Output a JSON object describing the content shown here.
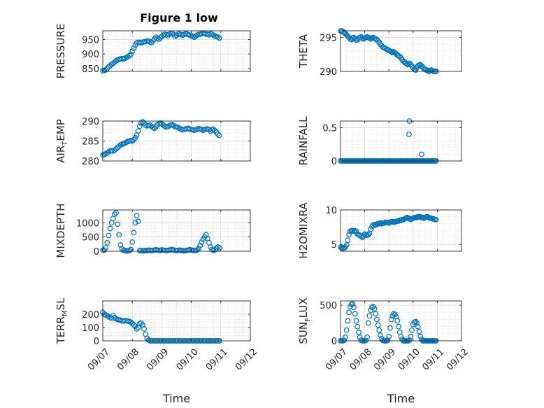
{
  "figure": {
    "title": "Figure 1 low",
    "marker_color": "#0072BD"
  },
  "chart_data": [
    {
      "type": "scatter",
      "ylabel": "PRESSURE",
      "ylim": [
        840,
        980
      ],
      "yticks": [
        850,
        900,
        950
      ],
      "xlim": [
        "09/07",
        "09/12"
      ],
      "xticks": [],
      "xlabel": "",
      "grid": true,
      "x": [
        0.0,
        0.05,
        0.1,
        0.15,
        0.2,
        0.25,
        0.3,
        0.35,
        0.4,
        0.45,
        0.5,
        0.55,
        0.6,
        0.65,
        0.7,
        0.75,
        0.8,
        0.85,
        0.9,
        0.95,
        1.0,
        1.05,
        1.1,
        1.15,
        1.2,
        1.25,
        1.3,
        1.35,
        1.4,
        1.45,
        1.5,
        1.55,
        1.6,
        1.65,
        1.7,
        1.75,
        1.8,
        1.85,
        1.9,
        1.95,
        2.0,
        2.05,
        2.1,
        2.15,
        2.2,
        2.25,
        2.3,
        2.35,
        2.4,
        2.45,
        2.5,
        2.55,
        2.6,
        2.65,
        2.7,
        2.75,
        2.8,
        2.85,
        2.9,
        2.95,
        3.0,
        3.05,
        3.1,
        3.15,
        3.2,
        3.25,
        3.3,
        3.35,
        3.4,
        3.45,
        3.5,
        3.55,
        3.6,
        3.65,
        3.7,
        3.75,
        3.8,
        3.85,
        3.9,
        3.95
      ],
      "values": [
        842,
        843,
        845,
        850,
        856,
        860,
        864,
        868,
        872,
        876,
        879,
        882,
        883,
        884,
        883,
        885,
        888,
        891,
        894,
        899,
        910,
        920,
        930,
        938,
        940,
        940,
        938,
        940,
        942,
        943,
        945,
        944,
        941,
        939,
        945,
        952,
        958,
        955,
        951,
        956,
        960,
        965,
        968,
        966,
        963,
        968,
        970,
        972,
        967,
        960,
        964,
        968,
        970,
        967,
        965,
        967,
        970,
        969,
        967,
        965,
        963,
        960,
        958,
        962,
        965,
        968,
        968,
        970,
        972,
        971,
        969,
        968,
        966,
        970,
        968,
        965,
        962,
        960,
        958,
        955
      ]
    },
    {
      "type": "scatter",
      "ylabel": "THETA",
      "ylim": [
        290,
        296
      ],
      "yticks": [
        290,
        295
      ],
      "xlim": [
        "09/07",
        "09/12"
      ],
      "xticks": [],
      "xlabel": "",
      "grid": true,
      "x": [
        0.0,
        0.05,
        0.1,
        0.15,
        0.2,
        0.25,
        0.3,
        0.35,
        0.4,
        0.45,
        0.5,
        0.55,
        0.6,
        0.65,
        0.7,
        0.75,
        0.8,
        0.85,
        0.9,
        0.95,
        1.0,
        1.05,
        1.1,
        1.15,
        1.2,
        1.25,
        1.3,
        1.35,
        1.4,
        1.45,
        1.5,
        1.55,
        1.6,
        1.65,
        1.7,
        1.75,
        1.8,
        1.85,
        1.9,
        1.95,
        2.0,
        2.05,
        2.1,
        2.15,
        2.2,
        2.25,
        2.3,
        2.35,
        2.4,
        2.45,
        2.5,
        2.55,
        2.6,
        2.65,
        2.7,
        2.75,
        2.8,
        2.85,
        2.9,
        2.95,
        3.0,
        3.05,
        3.1,
        3.15,
        3.2,
        3.25,
        3.3,
        3.35,
        3.4,
        3.45,
        3.5,
        3.55,
        3.6,
        3.65,
        3.7,
        3.75,
        3.8,
        3.85,
        3.9,
        3.95
      ],
      "values": [
        296.0,
        296.0,
        295.9,
        295.7,
        295.6,
        295.4,
        295.2,
        295.0,
        294.8,
        294.7,
        294.9,
        295.0,
        294.8,
        294.6,
        294.7,
        294.9,
        295.0,
        295.1,
        294.9,
        294.8,
        294.9,
        295.0,
        295.1,
        295.0,
        294.9,
        294.8,
        294.9,
        295.0,
        294.9,
        294.8,
        294.7,
        294.5,
        294.3,
        294.0,
        293.8,
        293.6,
        293.5,
        293.4,
        293.3,
        293.2,
        293.1,
        293.0,
        292.9,
        292.8,
        292.9,
        292.8,
        292.6,
        292.4,
        292.3,
        292.2,
        292.0,
        291.7,
        291.5,
        291.4,
        291.2,
        291.1,
        291.0,
        291.2,
        291.0,
        290.8,
        290.5,
        290.3,
        290.2,
        290.5,
        290.8,
        290.9,
        291.0,
        290.8,
        290.6,
        290.4,
        290.3,
        290.2,
        290.1,
        290.0,
        290.1,
        290.2,
        290.1,
        290.0,
        290.0,
        290.0
      ]
    },
    {
      "type": "scatter",
      "ylabel": "AIR_TEMP",
      "ylim": [
        280,
        290
      ],
      "yticks": [
        280,
        285,
        290
      ],
      "xlim": [
        "09/07",
        "09/12"
      ],
      "xticks": [],
      "xlabel": "",
      "grid": true,
      "x": [
        0.0,
        0.05,
        0.1,
        0.15,
        0.2,
        0.25,
        0.3,
        0.35,
        0.4,
        0.45,
        0.5,
        0.55,
        0.6,
        0.65,
        0.7,
        0.75,
        0.8,
        0.85,
        0.9,
        0.95,
        1.0,
        1.05,
        1.1,
        1.15,
        1.2,
        1.25,
        1.3,
        1.35,
        1.4,
        1.45,
        1.5,
        1.55,
        1.6,
        1.65,
        1.7,
        1.75,
        1.8,
        1.85,
        1.9,
        1.95,
        2.0,
        2.05,
        2.1,
        2.15,
        2.2,
        2.25,
        2.3,
        2.35,
        2.4,
        2.45,
        2.5,
        2.55,
        2.6,
        2.65,
        2.7,
        2.75,
        2.8,
        2.85,
        2.9,
        2.95,
        3.0,
        3.05,
        3.1,
        3.15,
        3.2,
        3.25,
        3.3,
        3.35,
        3.4,
        3.45,
        3.5,
        3.55,
        3.6,
        3.65,
        3.7,
        3.75,
        3.8,
        3.85,
        3.9,
        3.95
      ],
      "values": [
        281.5,
        281.6,
        281.8,
        282.0,
        282.3,
        282.5,
        282.6,
        282.5,
        282.7,
        283.0,
        283.4,
        283.7,
        284.0,
        284.2,
        284.3,
        284.5,
        284.7,
        284.9,
        285.0,
        285.1,
        285.0,
        285.3,
        285.8,
        286.5,
        287.5,
        288.7,
        289.5,
        289.8,
        289.5,
        289.0,
        288.8,
        288.9,
        289.0,
        288.7,
        288.4,
        288.2,
        288.6,
        289.0,
        289.3,
        289.5,
        289.3,
        289.0,
        288.7,
        288.5,
        288.6,
        288.8,
        289.0,
        289.1,
        288.9,
        288.6,
        288.5,
        288.4,
        288.2,
        288.0,
        287.8,
        287.9,
        288.0,
        288.1,
        288.2,
        288.0,
        287.9,
        287.8,
        287.7,
        287.8,
        288.0,
        288.1,
        288.0,
        287.9,
        287.7,
        287.9,
        288.0,
        288.0,
        287.9,
        287.5,
        287.8,
        288.0,
        287.6,
        287.2,
        286.8,
        286.4
      ]
    },
    {
      "type": "scatter",
      "ylabel": "RAINFALL",
      "ylim": [
        0,
        0.6
      ],
      "yticks": [
        0,
        0.5
      ],
      "xlim": [
        "09/07",
        "09/12"
      ],
      "xticks": [],
      "xlabel": "",
      "grid": true,
      "x": [
        0.0,
        0.05,
        0.1,
        0.15,
        0.2,
        0.25,
        0.3,
        0.35,
        0.4,
        0.45,
        0.5,
        0.55,
        0.6,
        0.65,
        0.7,
        0.75,
        0.8,
        0.85,
        0.9,
        0.95,
        1.0,
        1.05,
        1.1,
        1.15,
        1.2,
        1.25,
        1.3,
        1.35,
        1.4,
        1.45,
        1.5,
        1.55,
        1.6,
        1.65,
        1.7,
        1.75,
        1.8,
        1.85,
        1.9,
        1.95,
        2.0,
        2.05,
        2.1,
        2.15,
        2.2,
        2.25,
        2.3,
        2.35,
        2.4,
        2.45,
        2.5,
        2.55,
        2.6,
        2.65,
        2.7,
        2.75,
        2.8,
        2.85,
        2.9,
        2.95,
        3.0,
        3.05,
        3.1,
        3.15,
        3.2,
        3.25,
        3.3,
        3.35,
        3.4,
        3.45,
        3.5,
        3.55,
        3.6,
        3.65,
        3.7,
        3.75,
        3.8,
        3.85,
        3.9,
        3.95,
        2.83,
        2.85,
        3.35
      ],
      "values": [
        0,
        0,
        0,
        0,
        0,
        0,
        0,
        0,
        0,
        0,
        0,
        0,
        0,
        0,
        0,
        0,
        0,
        0,
        0,
        0,
        0,
        0,
        0,
        0,
        0,
        0,
        0,
        0,
        0,
        0,
        0,
        0,
        0,
        0,
        0,
        0,
        0,
        0,
        0,
        0,
        0,
        0,
        0,
        0,
        0,
        0,
        0,
        0,
        0,
        0,
        0,
        0,
        0,
        0,
        0,
        0,
        0,
        0,
        0,
        0,
        0,
        0,
        0,
        0,
        0,
        0,
        0,
        0,
        0,
        0,
        0,
        0,
        0,
        0,
        0,
        0,
        0,
        0,
        0,
        0,
        0.4,
        0.6,
        0.1
      ]
    },
    {
      "type": "scatter",
      "ylabel": "MIXDEPTH",
      "ylim": [
        0,
        1450
      ],
      "yticks": [
        0,
        500,
        1000
      ],
      "xlim": [
        "09/07",
        "09/12"
      ],
      "xticks": [],
      "xlabel": "",
      "grid": true,
      "x": [
        0.0,
        0.05,
        0.1,
        0.15,
        0.2,
        0.25,
        0.3,
        0.35,
        0.4,
        0.45,
        0.5,
        0.55,
        0.6,
        0.65,
        0.7,
        0.75,
        0.8,
        0.85,
        0.9,
        0.95,
        1.0,
        1.05,
        1.1,
        1.15,
        1.2,
        1.25,
        1.3,
        1.35,
        1.4,
        1.45,
        1.5,
        1.55,
        1.6,
        1.65,
        1.7,
        1.75,
        1.8,
        1.85,
        1.9,
        1.95,
        2.0,
        2.05,
        2.1,
        2.15,
        2.2,
        2.25,
        2.3,
        2.35,
        2.4,
        2.45,
        2.5,
        2.55,
        2.6,
        2.65,
        2.7,
        2.75,
        2.8,
        2.85,
        2.9,
        2.95,
        3.0,
        3.05,
        3.1,
        3.15,
        3.2,
        3.25,
        3.3,
        3.35,
        3.4,
        3.45,
        3.5,
        3.55,
        3.6,
        3.65,
        3.7,
        3.75,
        3.8,
        3.85,
        3.9,
        3.95
      ],
      "values": [
        30,
        40,
        120,
        300,
        550,
        800,
        1000,
        1150,
        1300,
        1350,
        950,
        580,
        220,
        90,
        40,
        20,
        10,
        10,
        20,
        60,
        320,
        650,
        1000,
        1250,
        1050,
        20,
        25,
        10,
        15,
        30,
        20,
        40,
        30,
        20,
        30,
        40,
        60,
        40,
        30,
        20,
        50,
        40,
        30,
        20,
        30,
        40,
        50,
        60,
        40,
        30,
        20,
        30,
        40,
        30,
        20,
        10,
        20,
        30,
        40,
        60,
        40,
        30,
        20,
        30,
        50,
        100,
        200,
        320,
        420,
        500,
        580,
        450,
        300,
        150,
        60,
        30,
        50,
        100,
        150,
        120
      ]
    },
    {
      "type": "scatter",
      "ylabel": "H2OMIXRA",
      "ylim": [
        4,
        10
      ],
      "yticks": [
        5,
        10
      ],
      "xlim": [
        "09/07",
        "09/12"
      ],
      "xticks": [],
      "xlabel": "",
      "grid": true,
      "x": [
        0.0,
        0.05,
        0.1,
        0.15,
        0.2,
        0.25,
        0.3,
        0.35,
        0.4,
        0.45,
        0.5,
        0.55,
        0.6,
        0.65,
        0.7,
        0.75,
        0.8,
        0.85,
        0.9,
        0.95,
        1.0,
        1.05,
        1.1,
        1.15,
        1.2,
        1.25,
        1.3,
        1.35,
        1.4,
        1.45,
        1.5,
        1.55,
        1.6,
        1.65,
        1.7,
        1.75,
        1.8,
        1.85,
        1.9,
        1.95,
        2.0,
        2.05,
        2.1,
        2.15,
        2.2,
        2.25,
        2.3,
        2.35,
        2.4,
        2.45,
        2.5,
        2.55,
        2.6,
        2.65,
        2.7,
        2.75,
        2.8,
        2.85,
        2.9,
        2.95,
        3.0,
        3.05,
        3.1,
        3.15,
        3.2,
        3.25,
        3.3,
        3.35,
        3.4,
        3.45,
        3.5,
        3.55,
        3.6,
        3.65,
        3.7,
        3.75,
        3.8,
        3.85,
        3.9,
        3.95
      ],
      "values": [
        4.6,
        4.5,
        4.4,
        4.5,
        4.6,
        4.9,
        5.6,
        6.4,
        6.9,
        7.0,
        7.0,
        6.9,
        7.0,
        6.9,
        6.5,
        6.4,
        6.3,
        6.2,
        6.0,
        6.2,
        6.5,
        6.4,
        6.3,
        6.4,
        6.6,
        7.2,
        7.6,
        7.8,
        7.9,
        7.8,
        7.9,
        8.0,
        8.0,
        8.1,
        8.0,
        8.1,
        8.1,
        8.2,
        8.2,
        8.2,
        8.1,
        8.2,
        8.3,
        8.3,
        8.2,
        8.3,
        8.3,
        8.4,
        8.4,
        8.5,
        8.5,
        8.6,
        8.6,
        8.7,
        8.8,
        8.9,
        8.8,
        8.7,
        8.6,
        8.7,
        8.8,
        8.9,
        8.9,
        8.9,
        9.0,
        9.0,
        9.0,
        8.9,
        8.9,
        8.8,
        8.9,
        9.0,
        9.0,
        8.9,
        8.8,
        8.8,
        8.7,
        8.7,
        8.6,
        8.6
      ]
    },
    {
      "type": "scatter",
      "ylabel": "TERR_MSL",
      "ylim": [
        0,
        300
      ],
      "yticks": [
        0,
        100,
        200
      ],
      "xlim": [
        "09/07",
        "09/12"
      ],
      "xticks": [
        "09/07",
        "09/08",
        "09/09",
        "09/10",
        "09/11",
        "09/12"
      ],
      "xlabel": "Time",
      "grid": true,
      "x": [
        0.0,
        0.05,
        0.1,
        0.15,
        0.2,
        0.25,
        0.3,
        0.35,
        0.4,
        0.45,
        0.5,
        0.55,
        0.6,
        0.65,
        0.7,
        0.75,
        0.8,
        0.85,
        0.9,
        0.95,
        1.0,
        1.05,
        1.1,
        1.15,
        1.2,
        1.25,
        1.3,
        1.35,
        1.4,
        1.45,
        1.5,
        1.55,
        1.6,
        1.65,
        1.7,
        1.75,
        1.8,
        1.85,
        1.9,
        1.95,
        2.0,
        2.05,
        2.1,
        2.15,
        2.2,
        2.25,
        2.3,
        2.35,
        2.4,
        2.45,
        2.5,
        2.55,
        2.6,
        2.65,
        2.7,
        2.75,
        2.8,
        2.85,
        2.9,
        2.95,
        3.0,
        3.05,
        3.1,
        3.15,
        3.2,
        3.25,
        3.3,
        3.35,
        3.4,
        3.45,
        3.5,
        3.55,
        3.6,
        3.65,
        3.7,
        3.75,
        3.8,
        3.85,
        3.9,
        3.95
      ],
      "values": [
        215,
        200,
        195,
        190,
        180,
        175,
        170,
        190,
        175,
        165,
        160,
        158,
        155,
        150,
        148,
        152,
        150,
        148,
        145,
        140,
        130,
        120,
        110,
        90,
        100,
        130,
        135,
        120,
        90,
        50,
        20,
        5,
        0,
        0,
        0,
        0,
        0,
        0,
        0,
        0,
        0,
        0,
        0,
        0,
        0,
        0,
        0,
        0,
        0,
        0,
        0,
        0,
        0,
        0,
        0,
        0,
        0,
        0,
        0,
        0,
        0,
        0,
        0,
        0,
        0,
        0,
        0,
        0,
        0,
        0,
        0,
        0,
        0,
        0,
        0,
        0,
        0,
        0,
        0,
        0
      ]
    },
    {
      "type": "scatter",
      "ylabel": "SUN_FLUX",
      "ylim": [
        0,
        560
      ],
      "yticks": [
        0,
        500
      ],
      "xlim": [
        "09/07",
        "09/12"
      ],
      "xticks": [
        "09/07",
        "09/08",
        "09/09",
        "09/10",
        "09/11",
        "09/12"
      ],
      "xlabel": "Time",
      "grid": true,
      "x": [
        0.0,
        0.05,
        0.1,
        0.15,
        0.2,
        0.25,
        0.3,
        0.35,
        0.4,
        0.45,
        0.5,
        0.55,
        0.6,
        0.65,
        0.7,
        0.75,
        0.8,
        0.85,
        0.9,
        0.95,
        1.0,
        1.05,
        1.1,
        1.15,
        1.2,
        1.25,
        1.3,
        1.35,
        1.4,
        1.45,
        1.5,
        1.55,
        1.6,
        1.65,
        1.7,
        1.75,
        1.8,
        1.85,
        1.9,
        1.95,
        2.0,
        2.05,
        2.1,
        2.15,
        2.2,
        2.25,
        2.3,
        2.35,
        2.4,
        2.45,
        2.5,
        2.55,
        2.6,
        2.65,
        2.7,
        2.75,
        2.8,
        2.85,
        2.9,
        2.95,
        3.0,
        3.05,
        3.1,
        3.15,
        3.2,
        3.25,
        3.3,
        3.35,
        3.4,
        3.45,
        3.5,
        3.55,
        3.6,
        3.65,
        3.7,
        3.75,
        3.8,
        3.85,
        3.9,
        3.95
      ],
      "values": [
        0,
        0,
        0,
        10,
        50,
        150,
        280,
        400,
        480,
        510,
        520,
        470,
        380,
        280,
        200,
        120,
        50,
        10,
        0,
        0,
        0,
        5,
        50,
        250,
        350,
        430,
        470,
        480,
        450,
        380,
        300,
        220,
        150,
        80,
        30,
        5,
        0,
        0,
        0,
        10,
        60,
        180,
        300,
        350,
        380,
        370,
        340,
        280,
        200,
        120,
        60,
        20,
        0,
        0,
        0,
        0,
        0,
        10,
        60,
        150,
        230,
        260,
        270,
        250,
        200,
        130,
        60,
        20,
        0,
        0,
        0,
        0,
        0,
        0,
        0,
        0,
        0,
        0,
        0,
        0
      ]
    }
  ]
}
